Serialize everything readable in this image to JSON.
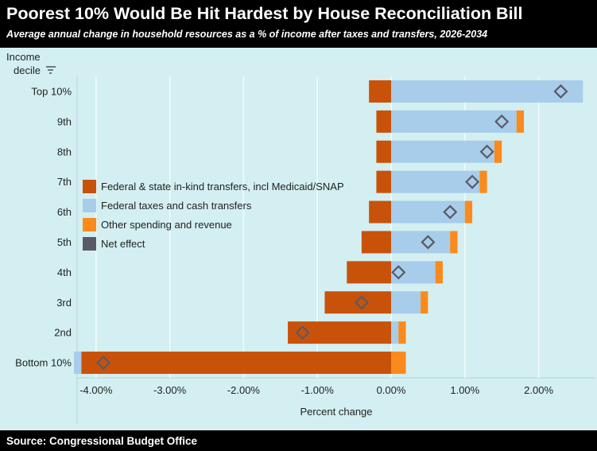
{
  "header": {
    "title": "Poorest 10% Would Be Hit Hardest by House Reconciliation Bill",
    "subtitle": "Average annual change in household resources as a % of income after taxes and transfers, 2026-2034"
  },
  "footer": {
    "source": "Source: Congressional Budget Office"
  },
  "colors": {
    "inkind": "#c8520a",
    "federal_tax": "#a7cdea",
    "other": "#fb8a1c",
    "net": "#5a5a66",
    "background": "#d3eff1",
    "gridline": "#f4fbfb"
  },
  "chart_data": {
    "type": "bar",
    "orientation": "horizontal",
    "stacked": true,
    "title": "Poorest 10% Would Be Hit Hardest by House Reconciliation Bill",
    "subtitle": "Average annual change in household resources as a % of income after taxes and transfers, 2026-2034",
    "ylabel_lines": [
      "Income",
      "decile"
    ],
    "xlabel": "Percent change",
    "categories": [
      "Top 10%",
      "9th",
      "8th",
      "7th",
      "6th",
      "5th",
      "4th",
      "3rd",
      "2nd",
      "Bottom 10%"
    ],
    "xlim": [
      -4.2,
      2.8
    ],
    "xticks": [
      -4,
      -3,
      -2,
      -1,
      0,
      1,
      2
    ],
    "xtick_labels": [
      "-4.00%",
      "-3.00%",
      "-2.00%",
      "-1.00%",
      "0.00%",
      "1.00%",
      "2.00%"
    ],
    "legend_position": "left-middle",
    "grid": "vertical",
    "series": [
      {
        "name": "Federal & state in-kind transfers, incl Medicaid/SNAP",
        "key": "inkind",
        "values": [
          -0.3,
          -0.2,
          -0.2,
          -0.2,
          -0.3,
          -0.4,
          -0.6,
          -0.9,
          -1.4,
          -4.2
        ]
      },
      {
        "name": "Federal taxes and cash transfers",
        "key": "federal_tax",
        "values": [
          2.6,
          1.7,
          1.4,
          1.2,
          1.0,
          0.8,
          0.6,
          0.4,
          0.1,
          -0.1
        ]
      },
      {
        "name": "Other spending and revenue",
        "key": "other",
        "values": [
          0.0,
          0.1,
          0.1,
          0.1,
          0.1,
          0.1,
          0.1,
          0.1,
          0.1,
          0.2
        ]
      },
      {
        "name": "Net effect",
        "key": "net",
        "type": "marker",
        "values": [
          2.3,
          1.5,
          1.3,
          1.1,
          0.8,
          0.5,
          0.1,
          -0.4,
          -1.2,
          -3.9
        ]
      }
    ],
    "source": "Source: Congressional Budget Office"
  }
}
